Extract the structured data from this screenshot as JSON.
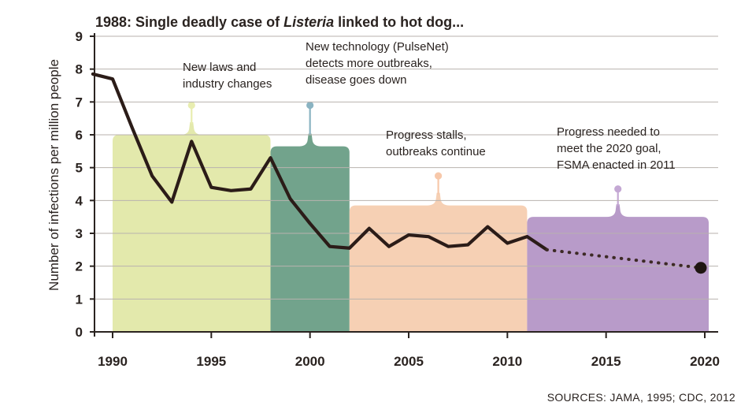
{
  "chart_data": {
    "type": "line",
    "title_prefix": "1988: Single deadly case of ",
    "title_italic": "Listeria",
    "title_suffix": " linked to hot dog...",
    "ylabel": "Number of infections per million people",
    "source": "SOURCES: JAMA, 1995; CDC, 2012",
    "xlim": [
      1989,
      2020.5
    ],
    "ylim": [
      0,
      9
    ],
    "x_ticks": [
      1990,
      1995,
      2000,
      2005,
      2010,
      2015,
      2020
    ],
    "y_ticks": [
      0,
      1,
      2,
      3,
      4,
      5,
      6,
      7,
      8,
      9
    ],
    "grid": true,
    "series": [
      {
        "style": "solid",
        "color": "#2b1c18",
        "x": [
          1989,
          1990,
          1991,
          1992,
          1993,
          1994,
          1995,
          1996,
          1997,
          1998,
          1999,
          2000,
          2001,
          2002,
          2003,
          2004,
          2005,
          2006,
          2007,
          2008,
          2009,
          2010,
          2011,
          2012
        ],
        "y": [
          7.85,
          7.7,
          6.2,
          4.75,
          3.95,
          5.8,
          4.4,
          4.3,
          4.35,
          5.3,
          4.05,
          3.3,
          2.6,
          2.55,
          3.15,
          2.6,
          2.95,
          2.9,
          2.6,
          2.65,
          3.2,
          2.7,
          2.9,
          2.5
        ]
      },
      {
        "style": "dotted",
        "color": "#3d2a26",
        "x": [
          2012,
          2019.8
        ],
        "y": [
          2.5,
          1.95
        ],
        "end_marker": true
      }
    ],
    "periods": [
      {
        "label": "New laws and industry changes",
        "start": 1990,
        "end": 1998,
        "height": 6.0,
        "callout_y": 6.9,
        "color": "#e2e8a8",
        "stem": "#e8edb0",
        "label_lines": [
          "New laws and",
          "industry changes"
        ]
      },
      {
        "label": "New technology (PulseNet) detects more outbreaks, disease goes down",
        "start": 1998,
        "end": 2002,
        "height": 5.65,
        "callout_y": 6.9,
        "color": "#6a9e86",
        "stem": "#8ab3c2",
        "label_lines": [
          "New technology (PulseNet)",
          "detects more outbreaks,",
          "disease goes down"
        ]
      },
      {
        "label": "Progress stalls, outbreaks continue",
        "start": 2002,
        "end": 2011,
        "height": 3.85,
        "callout_y": 4.75,
        "color": "#f6cdb0",
        "stem": "#f7c8aa",
        "label_lines": [
          "Progress stalls,",
          "outbreaks continue"
        ]
      },
      {
        "label": "Progress needed to meet the 2020 goal, FSMA enacted in 2011",
        "start": 2011,
        "end": 2020.2,
        "height": 3.5,
        "callout_y": 4.35,
        "color": "#b496c6",
        "stem": "#c4a8d4",
        "label_lines": [
          "Progress needed to",
          "meet the 2020 goal,",
          "FSMA enacted in 2011"
        ]
      }
    ]
  }
}
